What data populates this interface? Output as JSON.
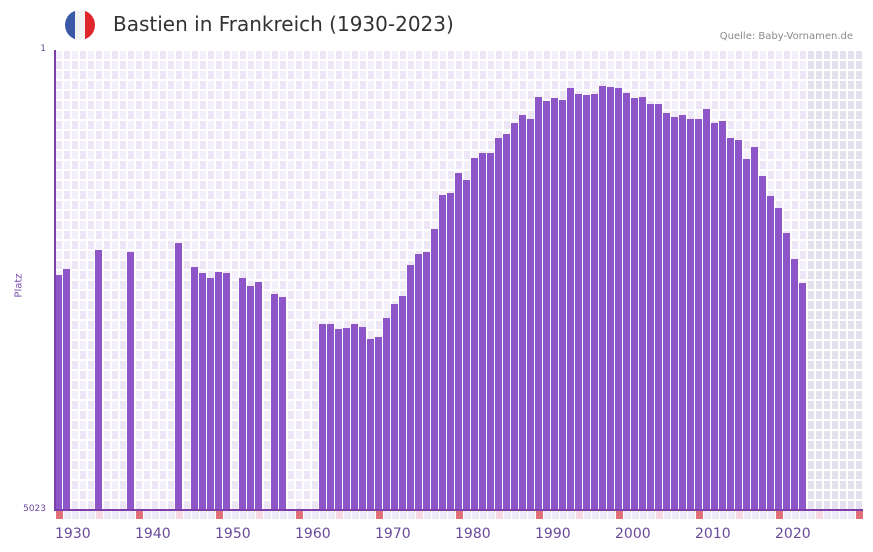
{
  "header": {
    "title": "Bastien in Frankreich (1930-2023)",
    "source": "Quelle: Baby-Vornamen.de",
    "flag_colors": [
      "#3a57a8",
      "#f2f2f2",
      "#e0262c"
    ]
  },
  "axis": {
    "ylabel": "Platz",
    "ytick_top": "1",
    "ytick_bottom": "5023"
  },
  "colors": {
    "bar": "#8e55c8",
    "axis": "#7a3fa8",
    "grid_light": "#f3effb",
    "grid_dark": "#ece6f7",
    "future_zone": "#e4e0ee",
    "decade_marker": "#e07078",
    "half_decade_marker": "#f5d8e0",
    "year_marker": "#efeaf8"
  },
  "chart_data": {
    "type": "bar",
    "title": "Bastien in Frankreich (1930-2023)",
    "xlabel": "",
    "ylabel": "Platz",
    "ylim": [
      5023,
      1
    ],
    "y_scale": "sqrt (rank 1 at top, 5023 at bottom)",
    "x_range": [
      1930,
      2028
    ],
    "xticks": [
      "1930",
      "1940",
      "1950",
      "1960",
      "1970",
      "1980",
      "1990",
      "2000",
      "2010",
      "2020"
    ],
    "grid": true,
    "legend": null,
    "annotations": [
      "Quelle: Baby-Vornamen.de"
    ],
    "categories": [
      1930,
      1931,
      1932,
      1933,
      1934,
      1935,
      1936,
      1937,
      1938,
      1939,
      1940,
      1941,
      1942,
      1943,
      1944,
      1945,
      1946,
      1947,
      1948,
      1949,
      1950,
      1951,
      1952,
      1953,
      1954,
      1955,
      1956,
      1957,
      1958,
      1959,
      1960,
      1961,
      1962,
      1963,
      1964,
      1965,
      1966,
      1967,
      1968,
      1969,
      1970,
      1971,
      1972,
      1973,
      1974,
      1975,
      1976,
      1977,
      1978,
      1979,
      1980,
      1981,
      1982,
      1983,
      1984,
      1985,
      1986,
      1987,
      1988,
      1989,
      1990,
      1991,
      1992,
      1993,
      1994,
      1995,
      1996,
      1997,
      1998,
      1999,
      2000,
      2001,
      2002,
      2003,
      2004,
      2005,
      2006,
      2007,
      2008,
      2009,
      2010,
      2011,
      2012,
      2013,
      2014,
      2015,
      2016,
      2017,
      2018,
      2019,
      2020,
      2021,
      2022,
      2023
    ],
    "values": [
      1202,
      1139,
      null,
      null,
      null,
      950,
      null,
      null,
      null,
      968,
      null,
      null,
      null,
      null,
      null,
      885,
      null,
      1118,
      1180,
      1234,
      1170,
      1180,
      null,
      1234,
      1322,
      1277,
      null,
      1413,
      1449,
      null,
      null,
      null,
      null,
      1783,
      1783,
      1849,
      1833,
      1783,
      1822,
      1982,
      1955,
      1706,
      1530,
      1437,
      1096,
      988,
      968,
      761,
      500,
      486,
      359,
      401,
      277,
      252,
      252,
      184,
      168,
      127,
      101,
      113,
      53,
      63,
      55,
      60,
      35,
      47,
      49,
      47,
      32,
      33,
      35,
      45,
      55,
      53,
      69,
      69,
      95,
      107,
      101,
      113,
      113,
      83,
      127,
      120,
      184,
      194,
      283,
      224,
      378,
      507,
      593,
      796,
      1037,
      1290
    ]
  }
}
